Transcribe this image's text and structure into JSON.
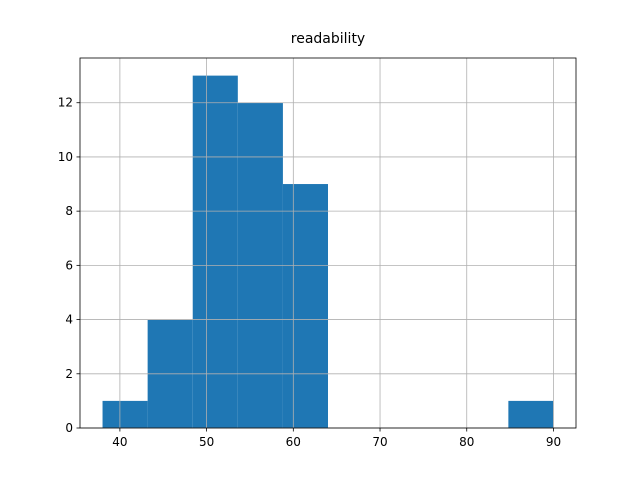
{
  "chart_data": {
    "type": "histogram",
    "title": "readability",
    "bins": [
      38,
      43.2,
      48.4,
      53.6,
      58.8,
      64,
      69.2,
      74.4,
      79.6,
      84.8,
      90
    ],
    "counts": [
      1,
      4,
      13,
      12,
      9,
      0,
      0,
      0,
      0,
      1
    ],
    "color": "#1f77b4",
    "xlim": [
      35.4,
      92.6
    ],
    "xticks": [
      40,
      50,
      60,
      70,
      80,
      90
    ],
    "ylim": [
      0,
      13.65
    ],
    "yticks": [
      0,
      2,
      4,
      6,
      8,
      10,
      12
    ],
    "grid": true
  }
}
